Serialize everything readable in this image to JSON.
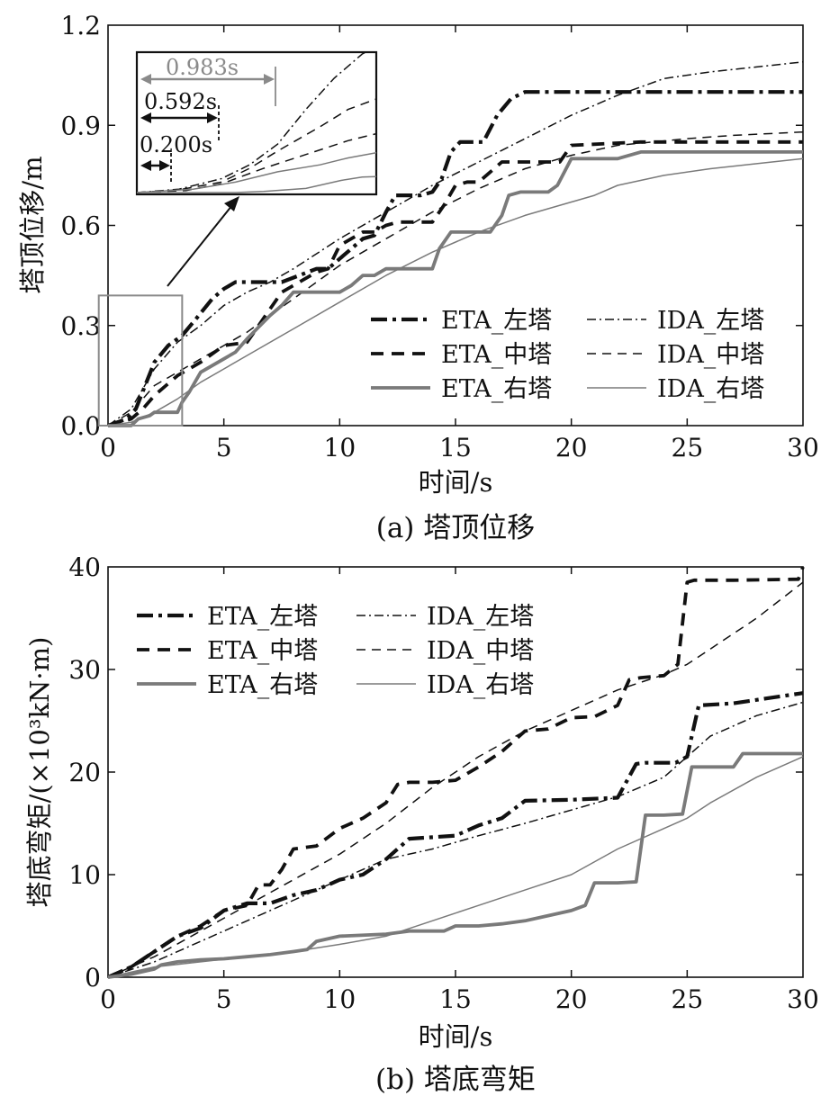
{
  "chart_data": [
    {
      "type": "line",
      "caption": "(a) 塔顶位移",
      "xlabel": "时间/s",
      "ylabel": "塔顶位移/m",
      "xlim": [
        0,
        30
      ],
      "ylim": [
        0,
        1.2
      ],
      "xticks": [
        "0",
        "5",
        "10",
        "15",
        "20",
        "25",
        "30"
      ],
      "yticks": [
        "0.0",
        "0.3",
        "0.6",
        "0.9",
        "1.2"
      ],
      "legend_position": "bottom-right",
      "series": [
        {
          "name": "ETA_左塔",
          "color": "#111111",
          "style": "dashdot-heavy",
          "x": [
            0,
            0.8,
            1.2,
            1.6,
            2.0,
            2.6,
            3.2,
            3.8,
            4.5,
            5.0,
            5.5,
            7.5,
            9.0,
            9.5,
            10.0,
            10.5,
            11.0,
            11.5,
            12.0,
            12.4,
            12.8,
            13.5,
            14.0,
            14.4,
            14.8,
            15.2,
            16.2,
            16.8,
            17.4,
            18.0,
            19.0,
            20.0,
            23.0,
            25.0,
            27.0,
            30.0
          ],
          "y": [
            0,
            0.02,
            0.05,
            0.12,
            0.19,
            0.24,
            0.27,
            0.32,
            0.38,
            0.41,
            0.43,
            0.43,
            0.47,
            0.47,
            0.5,
            0.53,
            0.56,
            0.57,
            0.64,
            0.69,
            0.69,
            0.69,
            0.7,
            0.74,
            0.82,
            0.85,
            0.85,
            0.93,
            0.98,
            1.0,
            1.0,
            1.0,
            1.0,
            1.0,
            1.0,
            1.0
          ]
        },
        {
          "name": "IDA_左塔",
          "color": "#111111",
          "style": "dashdot-thin",
          "x": [
            0,
            1,
            2,
            3,
            4,
            5,
            6,
            7,
            8,
            10,
            12,
            14,
            16,
            18,
            20,
            22,
            24,
            26,
            28,
            30
          ],
          "y": [
            0,
            0.05,
            0.17,
            0.25,
            0.3,
            0.36,
            0.4,
            0.43,
            0.47,
            0.56,
            0.64,
            0.72,
            0.79,
            0.86,
            0.93,
            0.99,
            1.04,
            1.06,
            1.075,
            1.09
          ]
        },
        {
          "name": "ETA_中塔",
          "color": "#111111",
          "style": "dashed-heavy",
          "x": [
            0,
            1.0,
            1.5,
            2.0,
            2.5,
            3.0,
            3.5,
            4.0,
            5.0,
            6.0,
            6.5,
            7.0,
            7.5,
            9.0,
            9.5,
            10.0,
            10.5,
            11.0,
            11.5,
            12.0,
            12.5,
            14.0,
            14.5,
            15.0,
            15.5,
            16.0,
            16.5,
            17.0,
            17.5,
            18.5,
            19.5,
            20.0,
            23.0,
            25.0,
            30.0
          ],
          "y": [
            0,
            0.02,
            0.05,
            0.09,
            0.12,
            0.15,
            0.17,
            0.19,
            0.24,
            0.25,
            0.3,
            0.35,
            0.4,
            0.46,
            0.47,
            0.54,
            0.56,
            0.58,
            0.58,
            0.6,
            0.61,
            0.61,
            0.66,
            0.72,
            0.73,
            0.73,
            0.76,
            0.79,
            0.79,
            0.79,
            0.79,
            0.84,
            0.85,
            0.85,
            0.85
          ]
        },
        {
          "name": "IDA_中塔",
          "color": "#111111",
          "style": "dashed-thin",
          "x": [
            0,
            1,
            2,
            3,
            4,
            5,
            6,
            7,
            8,
            10,
            12,
            14,
            16,
            18,
            20,
            22,
            25,
            27,
            30
          ],
          "y": [
            0,
            0.04,
            0.12,
            0.16,
            0.2,
            0.24,
            0.28,
            0.33,
            0.38,
            0.48,
            0.56,
            0.64,
            0.71,
            0.77,
            0.81,
            0.84,
            0.86,
            0.87,
            0.88
          ]
        },
        {
          "name": "ETA_右塔",
          "color": "#7a7a7a",
          "style": "solid-heavy",
          "x": [
            0,
            1.0,
            1.3,
            1.8,
            2.0,
            3.0,
            3.2,
            3.5,
            4.0,
            5.0,
            5.5,
            6.0,
            7.0,
            7.5,
            8.0,
            9.0,
            10.0,
            10.5,
            11.0,
            11.5,
            12.0,
            13.0,
            14.0,
            14.3,
            14.8,
            15.2,
            16.5,
            17.0,
            17.3,
            17.8,
            19.0,
            19.4,
            20.0,
            22.0,
            23.0,
            25.0,
            30.0
          ],
          "y": [
            0,
            0.0,
            0.02,
            0.03,
            0.04,
            0.04,
            0.07,
            0.1,
            0.16,
            0.2,
            0.22,
            0.26,
            0.33,
            0.36,
            0.4,
            0.4,
            0.4,
            0.42,
            0.45,
            0.45,
            0.47,
            0.47,
            0.47,
            0.53,
            0.58,
            0.58,
            0.58,
            0.63,
            0.69,
            0.7,
            0.7,
            0.72,
            0.8,
            0.8,
            0.82,
            0.82,
            0.82
          ]
        },
        {
          "name": "IDA_右塔",
          "color": "#7a7a7a",
          "style": "solid-thin",
          "x": [
            0,
            1,
            2,
            3,
            4,
            5,
            6,
            8,
            10,
            12,
            14,
            16,
            18,
            20,
            21,
            22,
            24,
            26,
            28,
            30
          ],
          "y": [
            0,
            0.01,
            0.04,
            0.08,
            0.13,
            0.17,
            0.21,
            0.29,
            0.37,
            0.45,
            0.52,
            0.58,
            0.63,
            0.67,
            0.69,
            0.72,
            0.75,
            0.77,
            0.785,
            0.8
          ]
        }
      ],
      "inset": {
        "annotations": [
          "0.983s",
          "0.592s",
          "0.200s"
        ],
        "xrange": [
          0,
          3.4
        ],
        "yrange": [
          0,
          0.4
        ],
        "zoom_box_x": [
          -0.4,
          3.2
        ],
        "zoom_box_y": [
          0,
          0.39
        ]
      }
    },
    {
      "type": "line",
      "caption": "(b) 塔底弯矩",
      "xlabel": "时间/s",
      "ylabel": "塔底弯矩/(×10³kN·m)",
      "xlim": [
        0,
        30
      ],
      "ylim": [
        0,
        40
      ],
      "xticks": [
        "0",
        "5",
        "10",
        "15",
        "20",
        "25",
        "30"
      ],
      "yticks": [
        "0",
        "10",
        "20",
        "30",
        "40"
      ],
      "legend_position": "top-left",
      "series": [
        {
          "name": "ETA_左塔",
          "color": "#111111",
          "style": "dashdot-heavy",
          "x": [
            0,
            1,
            2,
            3,
            4,
            5,
            6,
            7,
            8,
            9,
            10,
            11,
            12,
            13,
            15,
            16,
            17,
            18,
            20,
            22,
            22.8,
            23.2,
            24.5,
            25.0,
            25.5,
            27.0,
            30.0
          ],
          "y": [
            0,
            1,
            2.5,
            4,
            4.8,
            6.5,
            7.2,
            7.2,
            8,
            8.5,
            9.5,
            10,
            11.5,
            13.5,
            13.8,
            14.8,
            15.5,
            17.2,
            17.3,
            17.5,
            20.8,
            20.9,
            20.9,
            21.5,
            26.5,
            26.7,
            27.7
          ]
        },
        {
          "name": "IDA_左塔",
          "color": "#111111",
          "style": "dashdot-thin",
          "x": [
            0,
            2,
            4,
            6,
            8,
            10,
            12,
            14,
            16,
            18,
            20,
            22,
            24,
            25,
            26,
            28,
            30
          ],
          "y": [
            0,
            1.5,
            3.5,
            5.5,
            7.5,
            9.5,
            11.5,
            12.5,
            13.8,
            15,
            16.3,
            17.6,
            19.5,
            21.5,
            23.5,
            25.5,
            26.8
          ]
        },
        {
          "name": "ETA_中塔",
          "color": "#111111",
          "style": "dashed-heavy",
          "x": [
            0,
            1,
            2,
            3,
            4,
            5,
            6,
            6.5,
            7,
            7.5,
            8,
            9,
            10,
            11,
            12,
            12.5,
            13,
            14,
            15,
            16,
            17,
            18,
            19,
            20,
            21,
            22,
            22.5,
            23,
            24,
            24.6,
            25,
            25.3,
            27,
            29.8,
            30
          ],
          "y": [
            0,
            1,
            2.5,
            4,
            5,
            6.5,
            7,
            9,
            9,
            10.5,
            12.5,
            12.8,
            14.5,
            15.5,
            17,
            18.8,
            19,
            19,
            19.2,
            20.5,
            22,
            24,
            24.2,
            25.3,
            25.4,
            26.5,
            29,
            29.2,
            29.4,
            30.5,
            38.5,
            38.7,
            38.7,
            38.8,
            40
          ]
        },
        {
          "name": "IDA_中塔",
          "color": "#111111",
          "style": "dashed-thin",
          "x": [
            0,
            2,
            4,
            6,
            8,
            10,
            12,
            14,
            16,
            18,
            20,
            22,
            24,
            25,
            26,
            27,
            28,
            30
          ],
          "y": [
            0,
            2,
            4.5,
            7,
            9.5,
            12,
            15,
            18.5,
            21.5,
            24,
            26,
            28,
            29.5,
            30.5,
            32,
            33.5,
            35,
            38.5
          ]
        },
        {
          "name": "ETA_右塔",
          "color": "#7a7a7a",
          "style": "solid-heavy",
          "x": [
            0,
            1,
            2,
            2.3,
            3,
            4,
            5,
            6,
            7,
            8,
            8.6,
            9,
            10,
            12,
            13,
            14.5,
            15,
            16,
            17,
            18,
            19,
            20,
            20.6,
            21,
            22,
            22.8,
            23.2,
            24.0,
            24.8,
            25.2,
            27.0,
            27.4,
            30.0
          ],
          "y": [
            0,
            0.3,
            0.8,
            1.2,
            1.5,
            1.7,
            1.8,
            2.0,
            2.2,
            2.5,
            2.7,
            3.5,
            4.0,
            4.2,
            4.5,
            4.5,
            5.0,
            5.0,
            5.2,
            5.5,
            6.0,
            6.5,
            7.0,
            9.2,
            9.2,
            9.3,
            15.8,
            15.8,
            15.9,
            20.5,
            20.5,
            21.8,
            21.8
          ]
        },
        {
          "name": "IDA_右塔",
          "color": "#7a7a7a",
          "style": "solid-thin",
          "x": [
            0,
            2,
            4,
            6,
            8,
            10,
            12,
            14,
            16,
            18,
            20,
            22,
            24,
            25,
            26,
            28,
            30
          ],
          "y": [
            0,
            1,
            1.5,
            2.0,
            2.5,
            3.2,
            4.0,
            5.5,
            7.0,
            8.5,
            10.0,
            12.5,
            14.5,
            15.5,
            17.0,
            19.5,
            21.5
          ]
        }
      ]
    }
  ]
}
